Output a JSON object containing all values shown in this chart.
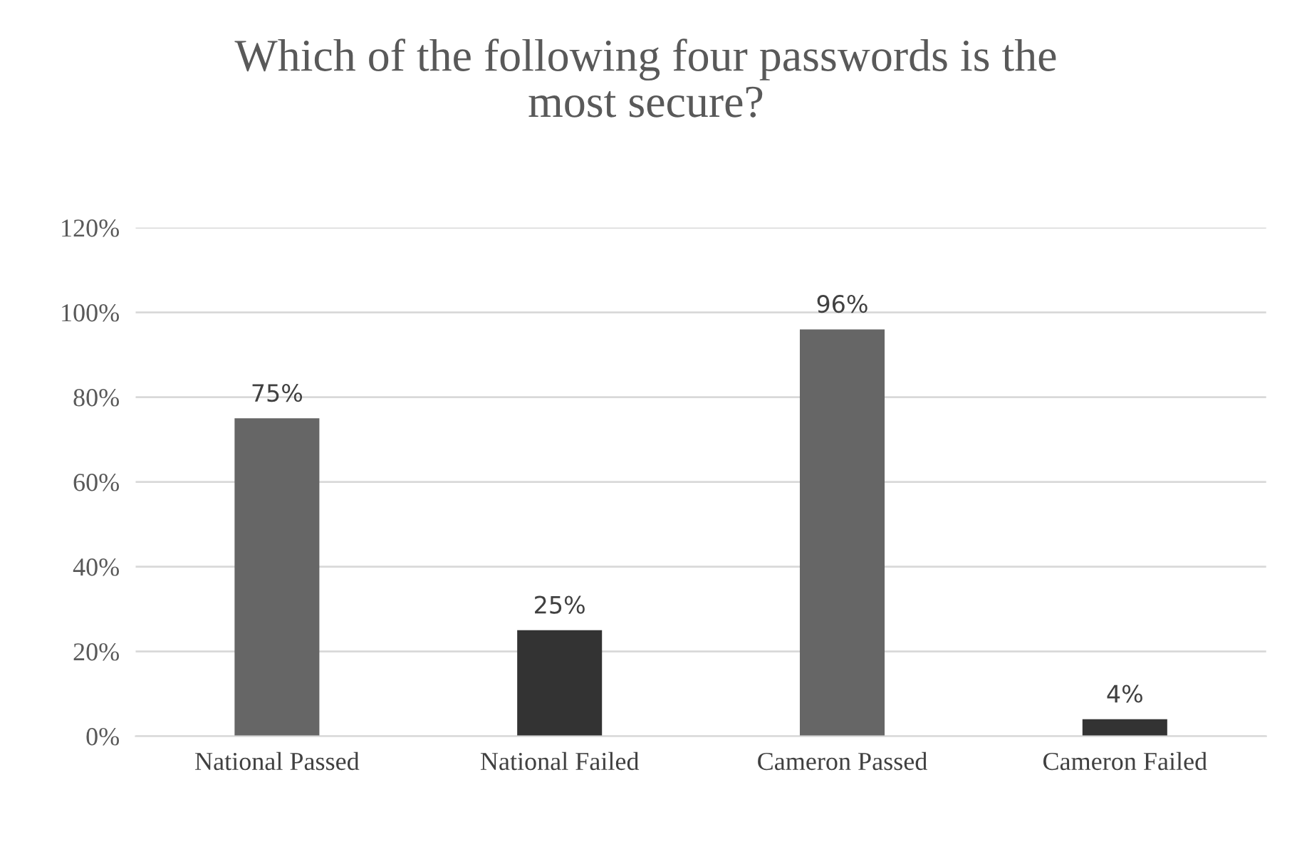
{
  "chart_data": {
    "type": "bar",
    "title": "Which of the following four passwords is the\nmost secure?",
    "categories": [
      "National Passed",
      "National Failed",
      "Cameron Passed",
      "Cameron Failed"
    ],
    "values": [
      75,
      25,
      96,
      4
    ],
    "colors": [
      "#666666",
      "#333333",
      "#666666",
      "#333333"
    ],
    "value_labels": [
      "75%",
      "25%",
      "96%",
      "4%"
    ],
    "ylim": [
      0,
      120
    ],
    "yticks": [
      {
        "value": 0,
        "label": "0%"
      },
      {
        "value": 20,
        "label": "20%"
      },
      {
        "value": 40,
        "label": "40%"
      },
      {
        "value": 60,
        "label": "60%"
      },
      {
        "value": 80,
        "label": "80%"
      },
      {
        "value": 100,
        "label": "100%"
      },
      {
        "value": 120,
        "label": "120%"
      }
    ],
    "grid": "y",
    "legend": false
  }
}
